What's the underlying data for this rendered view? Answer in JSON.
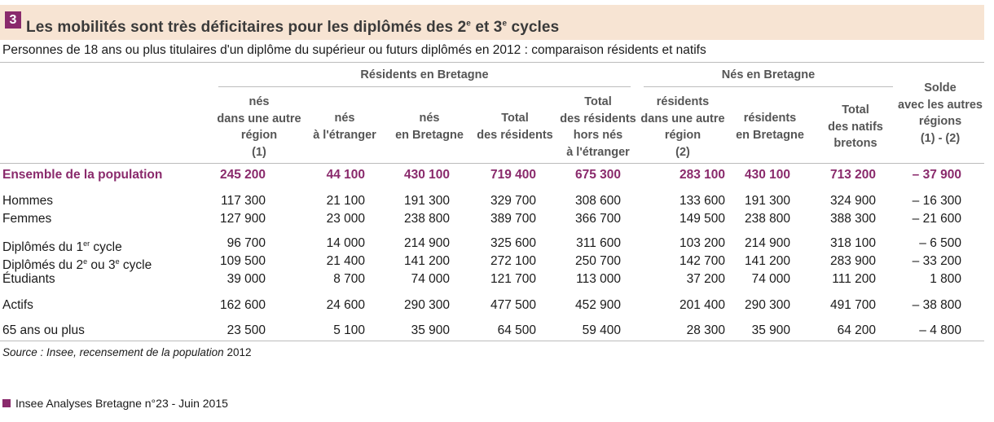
{
  "header": {
    "number": "3",
    "title_a": "Les mobilités sont très déficitaires pour les diplômés des 2",
    "title_sup1": "e",
    "title_b": " et 3",
    "title_sup2": "e",
    "title_c": " cycles",
    "subtitle": "Personnes de 18 ans ou plus titulaires d'un diplôme du supérieur ou futurs diplômés en 2012 : comparaison résidents et natifs"
  },
  "groups": {
    "residents": "Résidents en Bretagne",
    "natifs": "Nés en Bretagne"
  },
  "columns": [
    "nés\ndans une autre\nrégion\n(1)",
    "nés\nà l'étranger",
    "nés\nen Bretagne",
    "Total\ndes résidents",
    "Total\ndes résidents\nhors nés\nà l'étranger",
    "résidents\ndans une autre\nrégion\n(2)",
    "résidents\nen Bretagne",
    "Total\ndes natifs\nbretons",
    "Solde\navec les autres\nrégions\n(1) - (2)"
  ],
  "rows": [
    {
      "label": "Ensemble de la population",
      "values": [
        "245 200",
        "44 100",
        "430 100",
        "719 400",
        "675 300",
        "283 100",
        "430 100",
        "713 200",
        "– 37 900"
      ]
    },
    {
      "label": "Hommes",
      "values": [
        "117 300",
        "21 100",
        "191 300",
        "329 700",
        "308 600",
        "133 600",
        "191 300",
        "324 900",
        "– 16 300"
      ]
    },
    {
      "label": "Femmes",
      "values": [
        "127 900",
        "23 000",
        "238 800",
        "389 700",
        "366 700",
        "149 500",
        "238 800",
        "388 300",
        "– 21 600"
      ]
    },
    {
      "label": "Diplômés du 1",
      "sup": "er",
      "label_end": " cycle",
      "values": [
        "96 700",
        "14 000",
        "214 900",
        "325 600",
        "311 600",
        "103 200",
        "214 900",
        "318 100",
        "– 6 500"
      ]
    },
    {
      "label": "Diplômés du 2",
      "sup": "e",
      "label_mid": " ou 3",
      "sup2": "e",
      "label_end": " cycle",
      "values": [
        "109 500",
        "21 400",
        "141 200",
        "272 100",
        "250 700",
        "142 700",
        "141 200",
        "283 900",
        "– 33 200"
      ]
    },
    {
      "label": "Étudiants",
      "values": [
        "39 000",
        "8 700",
        "74 000",
        "121 700",
        "113 000",
        "37 200",
        "74 000",
        "111 200",
        "1 800"
      ]
    },
    {
      "label": "Actifs",
      "values": [
        "162 600",
        "24 600",
        "290 300",
        "477 500",
        "452 900",
        "201 400",
        "290 300",
        "491 700",
        "– 38 800"
      ]
    },
    {
      "label": "65 ans ou plus",
      "values": [
        "23 500",
        "5 100",
        "35 900",
        "64 500",
        "59 400",
        "28 300",
        "35 900",
        "64 200",
        "– 4 800"
      ]
    }
  ],
  "source": {
    "label": "Source :",
    "text": "Insee, recensement de la population",
    "year": "2012"
  },
  "footer": "Insee Analyses Bretagne n°23 - Juin 2015",
  "colors": {
    "accent": "#8a2a6c",
    "title_bg": "#f7e4d3"
  }
}
